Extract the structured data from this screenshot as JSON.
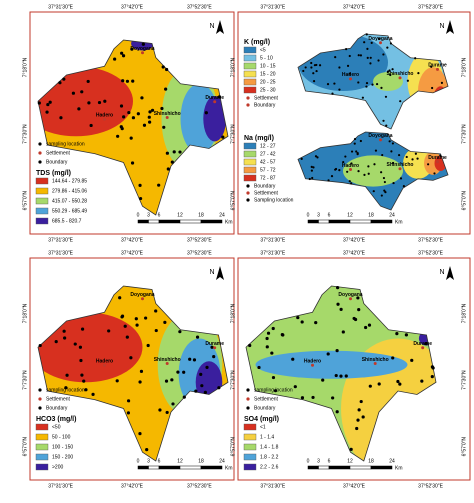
{
  "panels": [
    {
      "lon_top": [
        "37°31'30\"E",
        "37°42'0\"E",
        "37°52'30\"E"
      ],
      "lon_bottom": [
        "37°31'30\"E",
        "37°42'0\"E",
        "37°52'30\"E"
      ],
      "lat_left": [
        "7°18'0\"N",
        "7°7'30\"N",
        "6°57'0\"N"
      ],
      "north": "N",
      "scale": [
        "0",
        "3",
        "6",
        "12",
        "18",
        "24"
      ],
      "scale_unit": "Km",
      "maps": [
        {
          "places": [
            "Doyogana",
            "Shinshicho",
            "Durame",
            "Hadero"
          ],
          "key": [
            "sampling location",
            "Settlement",
            "Boundary"
          ],
          "legend_title": "TDS (mg/l)",
          "legend": [
            {
              "label": "144.64 - 279.85",
              "color": "#d7301f"
            },
            {
              "label": "279.86 - 415.06",
              "color": "#f5b800"
            },
            {
              "label": "415.07 - 550.28",
              "color": "#a6d96a"
            },
            {
              "label": "550.29 - 685.49",
              "color": "#4fa3d9"
            },
            {
              "label": "685.5 - 820.7",
              "color": "#3a1f9e"
            }
          ]
        }
      ]
    },
    {
      "lon_top": [
        "37°31'30\"E",
        "37°42'0\"E",
        "37°52'30\"E"
      ],
      "lon_bottom": [
        "37°31'30\"E",
        "37°42'0\"E",
        "37°52'30\"E"
      ],
      "lat_left": [
        "7°18'0\"N",
        "7°7'30\"N",
        "6°57'0\"N"
      ],
      "lat_right": [
        "7°18'0\"N",
        "7°7'30\"N",
        "6°57'0\"N"
      ],
      "north": "N",
      "scale": [
        "0",
        "3",
        "6",
        "12",
        "18",
        "24"
      ],
      "scale_unit": "Km",
      "maps": [
        {
          "places": [
            "Doyogana",
            "Shinshicho",
            "Durame",
            "Hadero"
          ],
          "key": [
            "Settlement",
            "Boundary"
          ],
          "legend_title": "K (mg/l)",
          "legend": [
            {
              "label": "<5",
              "color": "#2c7fb8"
            },
            {
              "label": "5 - 10",
              "color": "#74c0e3"
            },
            {
              "label": "10 - 15",
              "color": "#a6d96a"
            },
            {
              "label": "15 - 20",
              "color": "#f5e050"
            },
            {
              "label": "20 - 25",
              "color": "#f59b42"
            },
            {
              "label": "25 - 30",
              "color": "#d7301f"
            }
          ]
        },
        {
          "places": [
            "Doyogana",
            "Shinshicho",
            "Durame",
            "Hadero"
          ],
          "key": [
            "Boundary",
            "Settlement",
            "Sampling location"
          ],
          "legend_title": "Na (mg/l)",
          "legend": [
            {
              "label": "12 - 27",
              "color": "#2c7fb8"
            },
            {
              "label": "27 - 42",
              "color": "#a6d96a"
            },
            {
              "label": "42 - 57",
              "color": "#f5e050"
            },
            {
              "label": "57 - 72",
              "color": "#f59b42"
            },
            {
              "label": "72 - 87",
              "color": "#d7301f"
            }
          ]
        }
      ]
    },
    {
      "lon_top": [
        "37°31'30\"E",
        "37°42'0\"E",
        "37°52'30\"E"
      ],
      "lon_bottom": [
        "37°31'30\"E",
        "37°42'0\"E",
        "37°52'30\"E"
      ],
      "lat_left": [
        "7°18'0\"N",
        "7°7'30\"N",
        "6°57'0\"N"
      ],
      "north": "N",
      "scale": [
        "0",
        "3",
        "6",
        "12",
        "18",
        "24"
      ],
      "scale_unit": "Km",
      "maps": [
        {
          "places": [
            "Doyogana",
            "Shinshicho",
            "Durame",
            "Hadero"
          ],
          "key": [
            "sampling location",
            "Settlement",
            "Boundary"
          ],
          "legend_title": "HCO3 (mg/l)",
          "legend": [
            {
              "label": "<50",
              "color": "#d7301f"
            },
            {
              "label": "50 - 100",
              "color": "#f5b800"
            },
            {
              "label": "100 - 150",
              "color": "#a6d96a"
            },
            {
              "label": "150 - 200",
              "color": "#4fa3d9"
            },
            {
              "label": ">200",
              "color": "#3a1f9e"
            }
          ]
        }
      ]
    },
    {
      "lon_top": [
        "37°31'30\"E",
        "37°42'0\"E",
        "37°52'30\"E"
      ],
      "lon_bottom": [
        "37°31'30\"E",
        "37°42'0\"E",
        "37°52'30\"E"
      ],
      "lat_left": [
        "7°18'0\"N",
        "7°7'30\"N",
        "6°57'0\"N"
      ],
      "lat_right": [
        "7°18'0\"N",
        "7°7'30\"N",
        "6°57'0\"N"
      ],
      "north": "N",
      "scale": [
        "0",
        "3",
        "6",
        "12",
        "18",
        "24"
      ],
      "scale_unit": "Km",
      "maps": [
        {
          "places": [
            "Doyogana",
            "Shinshicho",
            "Durame",
            "Hadero"
          ],
          "key": [
            "sampling location",
            "Settlement",
            "Boundary"
          ],
          "legend_title": "SO4 (mg/l)",
          "legend": [
            {
              "label": "<1",
              "color": "#d7301f"
            },
            {
              "label": "1 - 1.4",
              "color": "#f5d040"
            },
            {
              "label": "1.4 - 1.8",
              "color": "#a6d96a"
            },
            {
              "label": "1.8 - 2.2",
              "color": "#4fa3d9"
            },
            {
              "label": "2.2 - 2.6",
              "color": "#3a1f9e"
            }
          ]
        }
      ]
    }
  ]
}
